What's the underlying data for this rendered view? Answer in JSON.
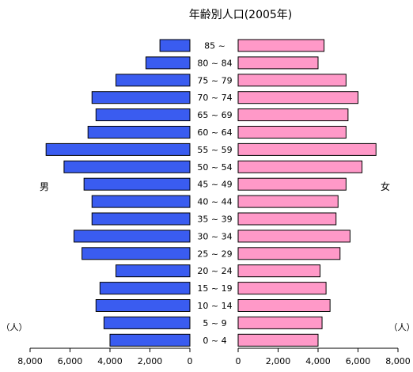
{
  "chart_data": {
    "type": "bar",
    "orientation": "horizontal",
    "layout": "population-pyramid",
    "title": "年齢別人口(2005年)",
    "categories": [
      "85 ~",
      "80 ~ 84",
      "75 ~ 79",
      "70 ~ 74",
      "65 ~ 69",
      "60 ~ 64",
      "55 ~ 59",
      "50 ~ 54",
      "45 ~ 49",
      "40 ~ 44",
      "35 ~ 39",
      "30 ~ 34",
      "25 ~ 29",
      "20 ~ 24",
      "15 ~ 19",
      "10 ~ 14",
      "5 ~ 9",
      "0 ~ 4"
    ],
    "series": [
      {
        "name": "男",
        "side": "left",
        "color": "#3a5cf0",
        "values": [
          1500,
          2200,
          3700,
          4900,
          4700,
          5100,
          7200,
          6300,
          5300,
          4900,
          4900,
          5800,
          5400,
          3700,
          4500,
          4700,
          4300,
          4000
        ]
      },
      {
        "name": "女",
        "side": "right",
        "color": "#ff99c8",
        "values": [
          4300,
          4000,
          5400,
          6000,
          5500,
          5400,
          6900,
          6200,
          5400,
          5000,
          4900,
          5600,
          5100,
          4100,
          4400,
          4600,
          4200,
          4000
        ]
      }
    ],
    "unit_label_left": "（人）",
    "unit_label_right": "（人）",
    "xlim": [
      0,
      8000
    ],
    "left_ticks": [
      "8,000",
      "6,000",
      "4,000",
      "2,000",
      "0"
    ],
    "right_ticks": [
      "0",
      "2,000",
      "4,000",
      "6,000",
      "8,000"
    ],
    "grid": false,
    "legend": "none"
  }
}
